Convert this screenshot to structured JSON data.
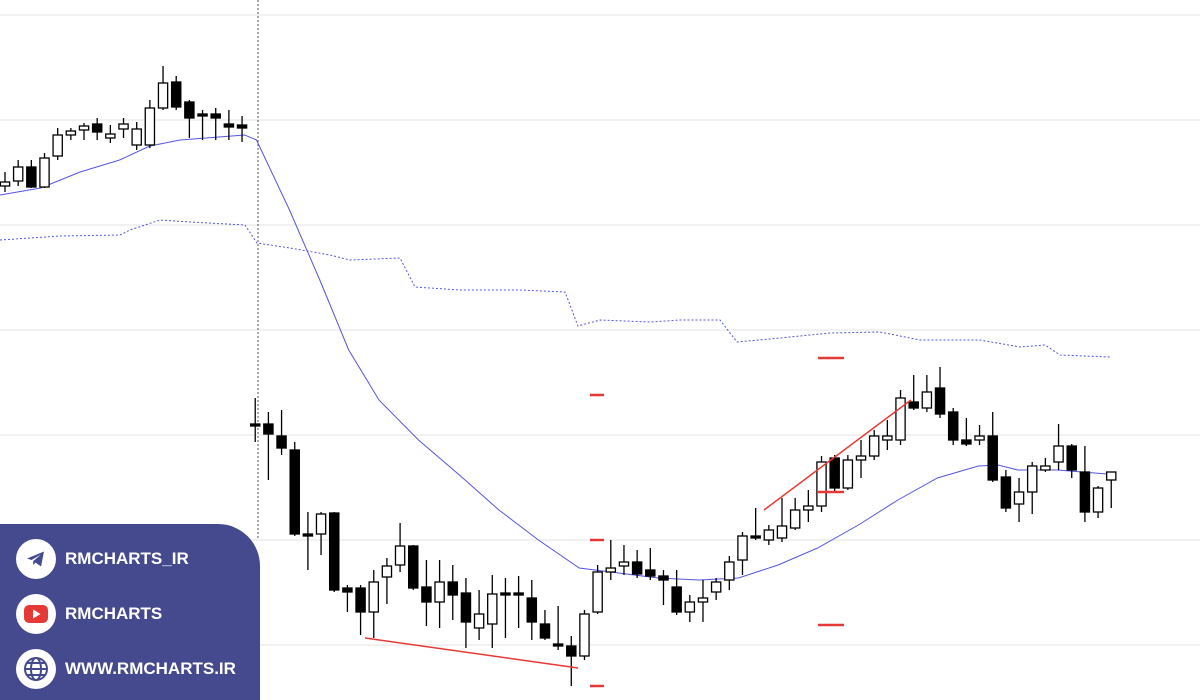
{
  "chart_data": {
    "type": "candlestick",
    "ylim": [
      0,
      700
    ],
    "yticks": [
      55,
      160,
      265,
      370,
      475,
      580,
      685
    ],
    "grid": true,
    "xlim": [
      -0.38,
      90.74
    ],
    "up_color": "#ffffff",
    "down_color": "#000000",
    "open": [
      514,
      519,
      533,
      513,
      544,
      565,
      570,
      576,
      562,
      571,
      555,
      555,
      592,
      618,
      598,
      586,
      586,
      576,
      575,
      276,
      276,
      264,
      250,
      166,
      166,
      187,
      112,
      112,
      88,
      123,
      135,
      154,
      113,
      98,
      118,
      107,
      72,
      76,
      107,
      107,
      102,
      76,
      56,
      54,
      44,
      88,
      128,
      134,
      138,
      130,
      124,
      113,
      88,
      98,
      108,
      120,
      140,
      164,
      160,
      162,
      172,
      190,
      194,
      242,
      212,
      240,
      244,
      260,
      260,
      298,
      292,
      312,
      288,
      260,
      260,
      264,
      223,
      196,
      208,
      230,
      238,
      254,
      228,
      188,
      220
    ],
    "high": [
      528,
      540,
      540,
      547,
      572,
      572,
      577,
      582,
      575,
      582,
      578,
      600,
      634,
      624,
      600,
      590,
      592,
      590,
      584,
      302,
      288,
      290,
      258,
      188,
      188,
      188,
      115,
      115,
      130,
      142,
      177,
      155,
      140,
      140,
      135,
      122,
      110,
      125,
      122,
      124,
      120,
      90,
      94,
      64,
      90,
      135,
      160,
      155,
      150,
      152,
      130,
      130,
      105,
      120,
      122,
      144,
      168,
      192,
      175,
      202,
      202,
      210,
      244,
      245,
      245,
      260,
      270,
      280,
      310,
      325,
      325,
      333,
      292,
      282,
      275,
      288,
      230,
      222,
      238,
      242,
      276,
      256,
      254,
      214,
      228
    ],
    "low": [
      508,
      514,
      512,
      512,
      540,
      560,
      560,
      560,
      557,
      562,
      550,
      552,
      590,
      590,
      562,
      560,
      560,
      560,
      558,
      258,
      220,
      245,
      164,
      130,
      145,
      108,
      88,
      65,
      62,
      96,
      128,
      110,
      74,
      72,
      80,
      52,
      60,
      52,
      62,
      72,
      60,
      60,
      50,
      14,
      40,
      86,
      120,
      125,
      122,
      120,
      95,
      85,
      78,
      78,
      100,
      110,
      125,
      160,
      155,
      158,
      170,
      178,
      188,
      208,
      210,
      222,
      240,
      250,
      255,
      290,
      288,
      282,
      255,
      254,
      255,
      218,
      188,
      178,
      186,
      228,
      230,
      222,
      178,
      182,
      192
    ],
    "close": [
      518,
      533,
      513,
      542,
      565,
      569,
      574,
      568,
      566,
      576,
      571,
      592,
      617,
      593,
      582,
      584,
      582,
      573,
      572,
      274,
      266,
      252,
      166,
      164,
      186,
      110,
      108,
      88,
      118,
      134,
      154,
      112,
      98,
      118,
      105,
      78,
      86,
      106,
      105,
      105,
      78,
      62,
      54,
      44,
      86,
      128,
      132,
      138,
      126,
      124,
      120,
      88,
      98,
      102,
      118,
      138,
      164,
      162,
      170,
      174,
      190,
      194,
      238,
      212,
      240,
      244,
      264,
      264,
      302,
      292,
      308,
      286,
      260,
      256,
      264,
      220,
      192,
      208,
      234,
      234,
      254,
      230,
      188,
      212,
      228
    ],
    "lines": [
      {
        "style": "solid",
        "color": "#5555dd",
        "x": [
          -0.38,
          2.7,
          5.7,
          8.7,
          11,
          13.3,
          18.2,
          19.1,
          21.6,
          23.9,
          26.1,
          28.4,
          31.4,
          34.5,
          37.5,
          40.5,
          43.6,
          46.6,
          49.6,
          52.7,
          55.7,
          58.7,
          61.7,
          64.8,
          67.8,
          70.8,
          73.9,
          75.4,
          76.9,
          79.9,
          83.7
        ],
        "values": [
          505,
          512,
          528,
          540,
          554,
          560,
          565,
          560,
          490,
          420,
          350,
          300,
          260,
          225,
          190,
          160,
          132,
          127,
          122,
          120,
          122,
          135,
          152,
          175,
          200,
          222,
          234,
          235,
          230,
          230,
          226
        ]
      },
      {
        "style": "dotted",
        "color": "#5555dd",
        "x": [
          -0.38,
          4.18,
          8.73,
          9.49,
          11.77,
          14.05,
          18.22,
          19.13,
          21.64,
          24.68,
          26.2,
          29.99,
          31.13,
          34.55,
          39.1,
          42.52,
          43.51,
          45.18,
          48.98,
          51.25,
          54.29,
          55.58,
          58.85,
          62.64,
          66.44,
          69.48,
          74.03,
          77.07,
          78.97,
          80.11,
          83.9
        ],
        "values": [
          460,
          464,
          465,
          470,
          480,
          478,
          475,
          457,
          452,
          445,
          440,
          442,
          413,
          410,
          410,
          408,
          374,
          380,
          378,
          380,
          380,
          358,
          362,
          367,
          368,
          360,
          360,
          353,
          355,
          345,
          343
        ]
      }
    ]
  },
  "sidebar": {
    "links": [
      "RMCHARTS_IR",
      "RMCHARTS",
      "WWW.RMCHARTS.IR"
    ]
  }
}
